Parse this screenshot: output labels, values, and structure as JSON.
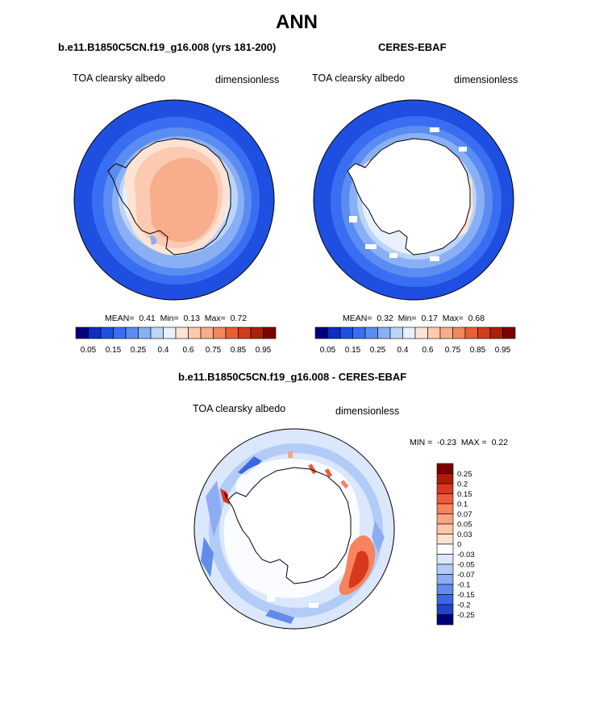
{
  "title": "ANN",
  "panels": [
    {
      "title": "b.e11.B1850C5CN.f19_g16.008 (yrs 181-200)",
      "variable": "TOA clearsky albedo",
      "units": "dimensionless",
      "stats": {
        "mean_label": "MEAN=",
        "mean": "0.41",
        "min_label": "Min=",
        "min": "0.13",
        "max_label": "Max=",
        "max": "0.72"
      },
      "colorbar": {
        "colors": [
          "#00007f",
          "#0a2fc2",
          "#1f4fe0",
          "#3a6ef2",
          "#5a8cf2",
          "#89b0f5",
          "#bcd3fa",
          "#e8f0fc",
          "#fde3d3",
          "#fccab0",
          "#f8ad8c",
          "#f3875f",
          "#e85f36",
          "#cf3d16",
          "#a82208",
          "#7d0000"
        ],
        "tick_labels": [
          "0.05",
          "0.15",
          "0.25",
          "0.4",
          "0.6",
          "0.75",
          "0.85",
          "0.95"
        ]
      }
    },
    {
      "title": "CERES-EBAF",
      "variable": "TOA clearsky albedo",
      "units": "dimensionless",
      "stats": {
        "mean_label": "MEAN=",
        "mean": "0.32",
        "min_label": "Min=",
        "min": "0.17",
        "max_label": "Max=",
        "max": "0.68"
      },
      "colorbar": {
        "colors": [
          "#00007f",
          "#0a2fc2",
          "#1f4fe0",
          "#3a6ef2",
          "#5a8cf2",
          "#89b0f5",
          "#bcd3fa",
          "#e8f0fc",
          "#fde3d3",
          "#fccab0",
          "#f8ad8c",
          "#f3875f",
          "#e85f36",
          "#cf3d16",
          "#a82208",
          "#7d0000"
        ],
        "tick_labels": [
          "0.05",
          "0.15",
          "0.25",
          "0.4",
          "0.6",
          "0.75",
          "0.85",
          "0.95"
        ]
      }
    }
  ],
  "diff_panel": {
    "title": "b.e11.B1850C5CN.f19_g16.008 - CERES-EBAF",
    "variable": "TOA clearsky albedo",
    "units": "dimensionless",
    "stats": {
      "min_label": "MIN =",
      "min": "-0.23",
      "max_label": "MAX =",
      "max": "0.22"
    },
    "colorbar": {
      "colors": [
        "#7d0000",
        "#b01c06",
        "#d8381b",
        "#f05a3a",
        "#f7835f",
        "#f9a583",
        "#fbc6aa",
        "#fde1cf",
        "#ffffff",
        "#dbe7fb",
        "#b3cbf7",
        "#8cadf3",
        "#618ceb",
        "#3a68e0",
        "#1c45c9",
        "#00007f"
      ],
      "labels": [
        "0.25",
        "0.2",
        "0.15",
        "0.1",
        "0.07",
        "0.05",
        "0.03",
        "0",
        "-0.03",
        "-0.05",
        "-0.07",
        "-0.1",
        "-0.15",
        "-0.2",
        "-0.25"
      ]
    }
  },
  "map_colors": {
    "ocean_outer": "#1f4fe0",
    "ring_2": "#3a6ef2",
    "ring_3": "#5a8cf2",
    "ring_4": "#89b0f5",
    "ring_5": "#bcd3fa",
    "ring_6": "#e8f0fc",
    "land_edge": "#fde3d3",
    "land_mid": "#fccab0",
    "land_core": "#f8ad8c",
    "no_data": "#ffffff",
    "coast": "#000000",
    "diff_positive": "#f0703a",
    "diff_negative": "#3a68e0"
  }
}
